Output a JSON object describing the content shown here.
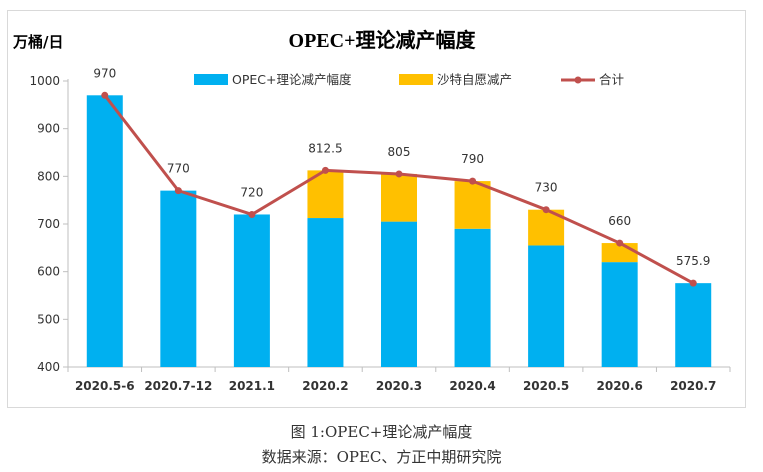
{
  "chart_data": {
    "type": "bar",
    "title": "OPEC+理论减产幅度",
    "ylabel": "万桶/日",
    "ylim": [
      400,
      1000
    ],
    "yticks": [
      400,
      500,
      600,
      700,
      800,
      900,
      1000
    ],
    "categories": [
      "2020.5-6",
      "2020.7-12",
      "2021.1",
      "2020.2",
      "2020.3",
      "2020.4",
      "2020.5",
      "2020.6",
      "2020.7"
    ],
    "series": [
      {
        "name": "OPEC+理论减产幅度",
        "kind": "bar",
        "stack": true,
        "color": "#00b0f0",
        "values": [
          970,
          770,
          720,
          712.5,
          705,
          690,
          655,
          620,
          575.9
        ]
      },
      {
        "name": "沙特自愿减产",
        "kind": "bar",
        "stack": true,
        "color": "#ffc000",
        "values": [
          0,
          0,
          0,
          100,
          100,
          100,
          75,
          40,
          0
        ]
      },
      {
        "name": "合计",
        "kind": "line",
        "color": "#c0504d",
        "values": [
          970,
          770,
          720,
          812.5,
          805,
          790,
          730,
          660,
          575.9
        ]
      }
    ],
    "data_labels": [
      "970",
      "770",
      "720",
      "812.5",
      "805",
      "790",
      "730",
      "660",
      "575.9"
    ],
    "grid": false,
    "legend_position": "top"
  },
  "captions": {
    "figure": "图 1:OPEC+理论减产幅度",
    "source": "数据来源：OPEC、方正中期研究院"
  }
}
